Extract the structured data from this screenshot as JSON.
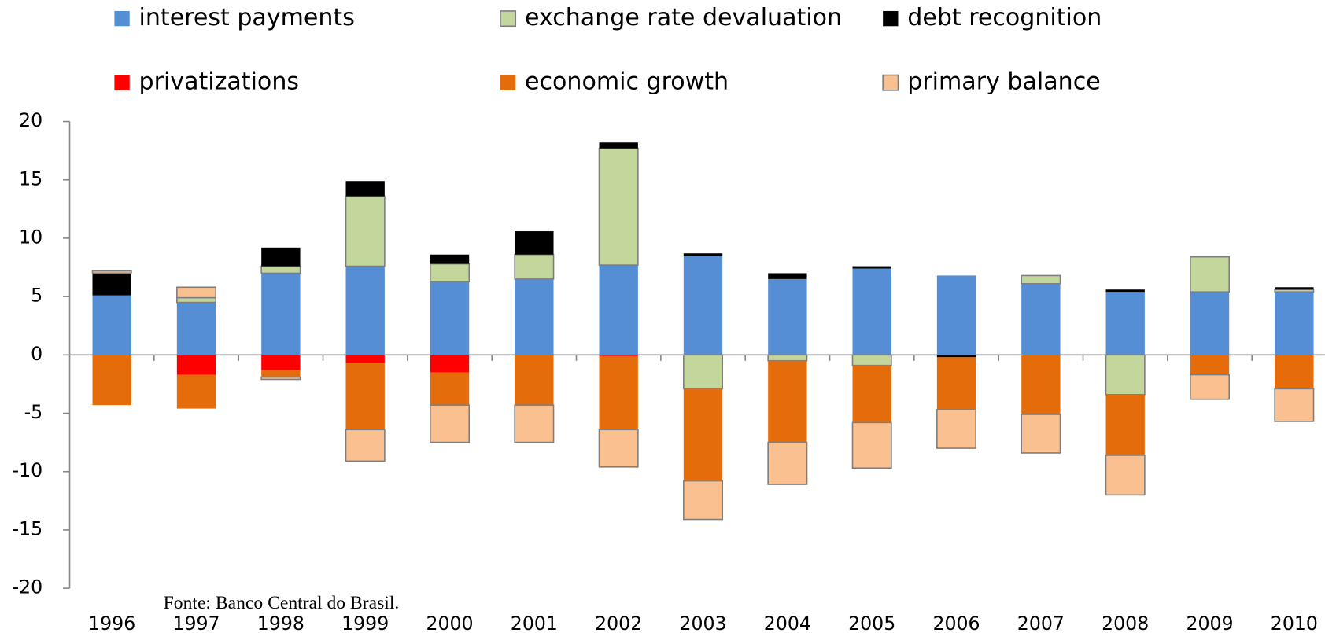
{
  "chart_data": {
    "type": "stacked-bar",
    "source": "Fonte: Banco Central do Brasil.",
    "categories": [
      "1996",
      "1997",
      "1998",
      "1999",
      "2000",
      "2001",
      "2002",
      "2003",
      "2004",
      "2005",
      "2006",
      "2007",
      "2008",
      "2009",
      "2010"
    ],
    "series": [
      {
        "name": "interest payments",
        "color": "#558ed5",
        "values": [
          5.1,
          4.5,
          7.0,
          7.6,
          6.3,
          6.5,
          7.7,
          8.5,
          6.5,
          7.4,
          6.8,
          6.1,
          5.4,
          5.4,
          5.4
        ]
      },
      {
        "name": "exchange rate devaluation",
        "color": "#c3d69b",
        "values": [
          0,
          0.4,
          0.6,
          6.0,
          1.5,
          2.1,
          10.0,
          -2.9,
          -0.5,
          -0.9,
          0,
          0.7,
          -3.4,
          3.0,
          0.2
        ]
      },
      {
        "name": "debt recognition",
        "color": "#000000",
        "values": [
          1.9,
          0,
          1.6,
          1.3,
          0.8,
          2.0,
          0.5,
          0.2,
          0.5,
          0.2,
          -0.2,
          0,
          0.2,
          0,
          0.2
        ]
      },
      {
        "name": "privatizations",
        "color": "#ff0000",
        "values": [
          0,
          -1.7,
          -1.3,
          -0.7,
          -1.5,
          0,
          -0.1,
          0,
          0,
          0,
          0,
          0,
          0,
          0,
          0
        ]
      },
      {
        "name": "economic growth",
        "color": "#e46c0a",
        "values": [
          -4.3,
          -2.9,
          -0.6,
          -5.7,
          -2.8,
          -4.3,
          -6.3,
          -7.9,
          -7.0,
          -4.9,
          -4.5,
          -5.1,
          -5.2,
          -1.7,
          -2.9
        ]
      },
      {
        "name": "primary balance",
        "color": "#fac090",
        "values": [
          0.2,
          0.9,
          -0.2,
          -2.7,
          -3.2,
          -3.2,
          -3.2,
          -3.3,
          -3.6,
          -3.9,
          -3.3,
          -3.3,
          -3.4,
          -2.1,
          -2.8
        ]
      }
    ],
    "ylim": [
      -20,
      20
    ],
    "yticks": [
      -20,
      -15,
      -10,
      -5,
      0,
      5,
      10,
      15,
      20
    ],
    "grid": false
  }
}
